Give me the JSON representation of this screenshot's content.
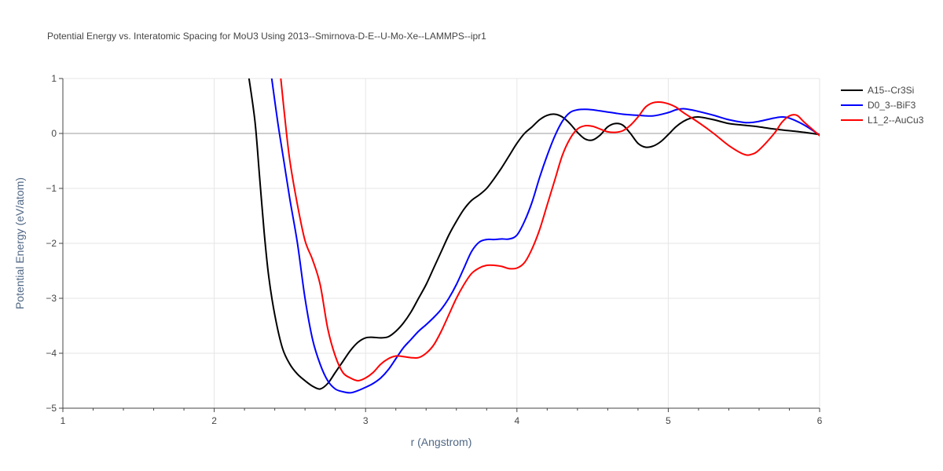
{
  "chart_data": {
    "type": "line",
    "title": "Potential Energy vs. Interatomic Spacing for MoU3 Using 2013--Smirnova-D-E--U-Mo-Xe--LAMMPS--ipr1",
    "xlabel": "r (Angstrom)",
    "ylabel": "Potential Energy (eV/atom)",
    "xlim": [
      1,
      6
    ],
    "ylim": [
      -5,
      1
    ],
    "xticks": [
      1,
      2,
      3,
      4,
      5,
      6
    ],
    "xtick_labels": [
      "1",
      "2",
      "3",
      "4",
      "5",
      "6"
    ],
    "yticks": [
      -5,
      -4,
      -3,
      -2,
      -1,
      0,
      1
    ],
    "ytick_labels": [
      "−5",
      "−4",
      "−3",
      "−2",
      "−1",
      "0",
      "1"
    ],
    "grid": true,
    "legend_position": "top-right",
    "series": [
      {
        "name": "A15--Cr3Si",
        "color": "#000000",
        "x": [
          2.23,
          2.27,
          2.3,
          2.33,
          2.36,
          2.4,
          2.45,
          2.5,
          2.55,
          2.6,
          2.65,
          2.7,
          2.75,
          2.8,
          2.85,
          2.9,
          2.95,
          3.0,
          3.05,
          3.1,
          3.15,
          3.2,
          3.25,
          3.3,
          3.35,
          3.4,
          3.45,
          3.5,
          3.55,
          3.6,
          3.65,
          3.7,
          3.75,
          3.8,
          3.85,
          3.9,
          3.95,
          4.0,
          4.05,
          4.1,
          4.15,
          4.2,
          4.25,
          4.3,
          4.35,
          4.4,
          4.45,
          4.5,
          4.55,
          4.6,
          4.65,
          4.7,
          4.75,
          4.8,
          4.85,
          4.9,
          4.95,
          5.0,
          5.05,
          5.1,
          5.15,
          5.2,
          5.3,
          5.4,
          5.5,
          5.6,
          5.7,
          5.8,
          5.9,
          6.0
        ],
        "y": [
          1.0,
          0.2,
          -0.8,
          -1.8,
          -2.6,
          -3.3,
          -3.9,
          -4.2,
          -4.38,
          -4.5,
          -4.6,
          -4.65,
          -4.55,
          -4.35,
          -4.15,
          -3.95,
          -3.8,
          -3.72,
          -3.71,
          -3.72,
          -3.7,
          -3.6,
          -3.45,
          -3.25,
          -3.0,
          -2.75,
          -2.45,
          -2.15,
          -1.85,
          -1.6,
          -1.38,
          -1.22,
          -1.12,
          -1.0,
          -0.82,
          -0.62,
          -0.4,
          -0.18,
          0.0,
          0.12,
          0.25,
          0.33,
          0.35,
          0.3,
          0.18,
          0.02,
          -0.1,
          -0.12,
          -0.03,
          0.12,
          0.18,
          0.15,
          0.0,
          -0.18,
          -0.25,
          -0.23,
          -0.15,
          -0.02,
          0.12,
          0.22,
          0.28,
          0.3,
          0.25,
          0.18,
          0.15,
          0.12,
          0.08,
          0.05,
          0.02,
          -0.02
        ]
      },
      {
        "name": "D0_3--BiF3",
        "color": "#0000ff",
        "x": [
          2.38,
          2.42,
          2.46,
          2.5,
          2.55,
          2.6,
          2.65,
          2.7,
          2.75,
          2.8,
          2.85,
          2.9,
          2.95,
          3.0,
          3.05,
          3.1,
          3.15,
          3.2,
          3.25,
          3.3,
          3.35,
          3.4,
          3.45,
          3.5,
          3.55,
          3.6,
          3.65,
          3.7,
          3.75,
          3.8,
          3.85,
          3.9,
          3.95,
          4.0,
          4.05,
          4.1,
          4.15,
          4.2,
          4.25,
          4.3,
          4.35,
          4.4,
          4.45,
          4.5,
          4.55,
          4.6,
          4.65,
          4.7,
          4.8,
          4.9,
          5.0,
          5.05,
          5.1,
          5.15,
          5.2,
          5.3,
          5.4,
          5.5,
          5.55,
          5.6,
          5.7,
          5.75,
          5.8,
          5.9,
          6.0
        ],
        "y": [
          1.0,
          0.2,
          -0.5,
          -1.2,
          -2.0,
          -3.0,
          -3.75,
          -4.2,
          -4.5,
          -4.65,
          -4.7,
          -4.72,
          -4.68,
          -4.62,
          -4.55,
          -4.45,
          -4.3,
          -4.1,
          -3.9,
          -3.75,
          -3.6,
          -3.48,
          -3.35,
          -3.2,
          -3.0,
          -2.75,
          -2.45,
          -2.15,
          -1.98,
          -1.93,
          -1.93,
          -1.92,
          -1.92,
          -1.85,
          -1.6,
          -1.25,
          -0.8,
          -0.4,
          -0.05,
          0.22,
          0.38,
          0.43,
          0.44,
          0.43,
          0.41,
          0.39,
          0.37,
          0.35,
          0.33,
          0.32,
          0.38,
          0.43,
          0.45,
          0.43,
          0.4,
          0.33,
          0.25,
          0.2,
          0.2,
          0.22,
          0.28,
          0.3,
          0.28,
          0.15,
          -0.03
        ]
      },
      {
        "name": "L1_2--AuCu3",
        "color": "#ff0000",
        "x": [
          2.44,
          2.47,
          2.5,
          2.55,
          2.6,
          2.65,
          2.7,
          2.75,
          2.8,
          2.85,
          2.9,
          2.95,
          3.0,
          3.05,
          3.1,
          3.15,
          3.2,
          3.25,
          3.3,
          3.35,
          3.4,
          3.45,
          3.5,
          3.55,
          3.6,
          3.65,
          3.7,
          3.75,
          3.8,
          3.85,
          3.9,
          3.95,
          4.0,
          4.05,
          4.1,
          4.15,
          4.2,
          4.25,
          4.3,
          4.35,
          4.4,
          4.45,
          4.5,
          4.55,
          4.6,
          4.65,
          4.7,
          4.75,
          4.8,
          4.85,
          4.9,
          4.95,
          5.0,
          5.05,
          5.1,
          5.2,
          5.3,
          5.4,
          5.5,
          5.55,
          5.6,
          5.7,
          5.75,
          5.8,
          5.85,
          5.9,
          6.0
        ],
        "y": [
          1.0,
          0.2,
          -0.5,
          -1.3,
          -1.95,
          -2.3,
          -2.75,
          -3.55,
          -4.05,
          -4.35,
          -4.45,
          -4.5,
          -4.45,
          -4.35,
          -4.2,
          -4.1,
          -4.05,
          -4.06,
          -4.08,
          -4.08,
          -4.0,
          -3.85,
          -3.6,
          -3.3,
          -3.0,
          -2.75,
          -2.55,
          -2.45,
          -2.4,
          -2.4,
          -2.42,
          -2.46,
          -2.45,
          -2.35,
          -2.1,
          -1.75,
          -1.3,
          -0.85,
          -0.4,
          -0.1,
          0.08,
          0.14,
          0.13,
          0.08,
          0.03,
          0.02,
          0.05,
          0.15,
          0.3,
          0.48,
          0.56,
          0.57,
          0.54,
          0.48,
          0.38,
          0.2,
          0.0,
          -0.22,
          -0.38,
          -0.38,
          -0.3,
          0.0,
          0.2,
          0.32,
          0.33,
          0.2,
          -0.04
        ]
      }
    ]
  }
}
